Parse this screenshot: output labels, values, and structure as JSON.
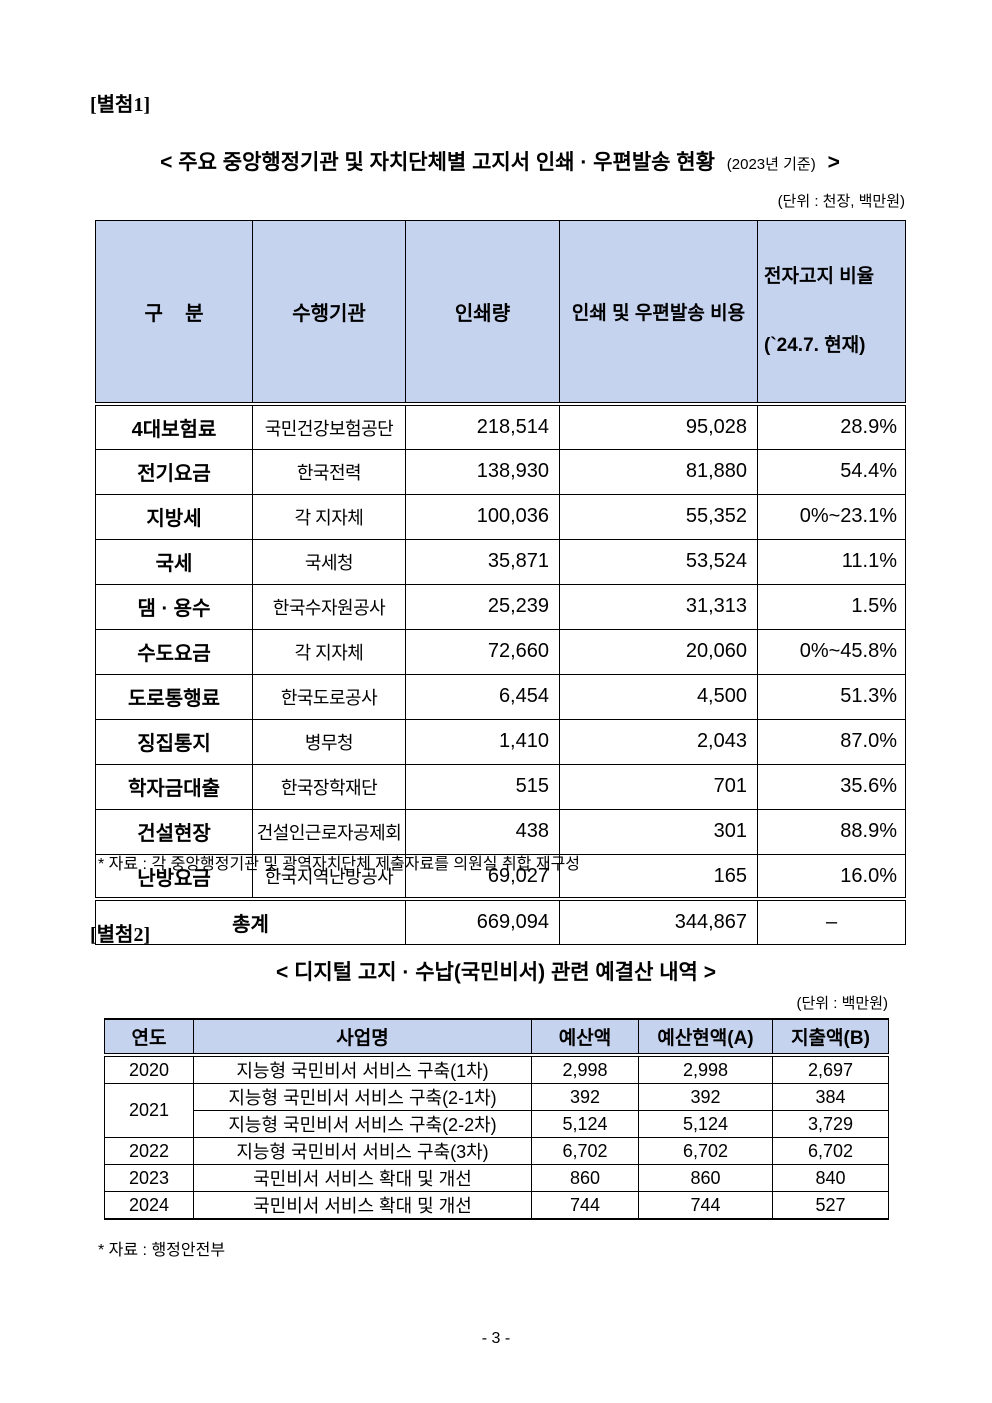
{
  "colors": {
    "header_bg": "#c6d3ef",
    "border": "#000000"
  },
  "page_number": "- 3 -",
  "attachment1": {
    "label": "[별첨1]",
    "title_main": "< 주요 중앙행정기관 및 자치단체별 고지서 인쇄 · 우편발송 현황",
    "title_note": "(2023년 기준)",
    "title_close": ">",
    "unit": "(단위 : 천장, 백만원)",
    "table": {
      "headers": {
        "category": "구    분",
        "agency": "수행기관",
        "print_volume": "인쇄량",
        "mail_cost": "인쇄 및 우편발송 비용",
        "rate_line1": "전자고지 비율",
        "rate_line2": "(`24.7. 현재)"
      },
      "rows": [
        {
          "category": "4대보험료",
          "agency": "국민건강보험공단",
          "print_volume": "218,514",
          "cost": "95,028",
          "rate": "28.9%"
        },
        {
          "category": "전기요금",
          "agency": "한국전력",
          "print_volume": "138,930",
          "cost": "81,880",
          "rate": "54.4%"
        },
        {
          "category": "지방세",
          "agency": "각 지자체",
          "print_volume": "100,036",
          "cost": "55,352",
          "rate": "0%~23.1%"
        },
        {
          "category": "국세",
          "agency": "국세청",
          "print_volume": "35,871",
          "cost": "53,524",
          "rate": "11.1%"
        },
        {
          "category": "댐 · 용수",
          "agency": "한국수자원공사",
          "print_volume": "25,239",
          "cost": "31,313",
          "rate": "1.5%"
        },
        {
          "category": "수도요금",
          "agency": "각 지자체",
          "print_volume": "72,660",
          "cost": "20,060",
          "rate": "0%~45.8%"
        },
        {
          "category": "도로통행료",
          "agency": "한국도로공사",
          "print_volume": "6,454",
          "cost": "4,500",
          "rate": "51.3%"
        },
        {
          "category": "징집통지",
          "agency": "병무청",
          "print_volume": "1,410",
          "cost": "2,043",
          "rate": "87.0%"
        },
        {
          "category": "학자금대출",
          "agency": "한국장학재단",
          "print_volume": "515",
          "cost": "701",
          "rate": "35.6%"
        },
        {
          "category": "건설현장",
          "agency": "건설인근로자공제회",
          "print_volume": "438",
          "cost": "301",
          "rate": "88.9%"
        },
        {
          "category": "난방요금",
          "agency": "한국지역난방공사",
          "print_volume": "69,027",
          "cost": "165",
          "rate": "16.0%"
        }
      ],
      "total": {
        "label": "총계",
        "print_volume": "669,094",
        "cost": "344,867",
        "rate": "–"
      }
    },
    "footnote": "* 자료 : 각 중앙행정기관 및 광역자치단체 제출자료를 의원실 취합 재구성"
  },
  "attachment2": {
    "label": "[별첨2]",
    "title": "< 디지털 고지 · 수납(국민비서) 관련 예결산 내역 >",
    "unit": "(단위 : 백만원)",
    "table": {
      "headers": [
        "연도",
        "사업명",
        "예산액",
        "예산현액(A)",
        "지출액(B)"
      ],
      "rows": [
        {
          "year": "2020",
          "rowspan": 1,
          "project": "지능형 국민비서 서비스 구축(1차)",
          "budget": "2,998",
          "current": "2,998",
          "spent": "2,697"
        },
        {
          "year": "2021",
          "rowspan": 2,
          "project": "지능형 국민비서 서비스 구축(2-1차)",
          "budget": "392",
          "current": "392",
          "spent": "384"
        },
        {
          "year": null,
          "rowspan": 0,
          "project": "지능형 국민비서 서비스 구축(2-2차)",
          "budget": "5,124",
          "current": "5,124",
          "spent": "3,729"
        },
        {
          "year": "2022",
          "rowspan": 1,
          "project": "지능형 국민비서 서비스 구축(3차)",
          "budget": "6,702",
          "current": "6,702",
          "spent": "6,702"
        },
        {
          "year": "2023",
          "rowspan": 1,
          "project": "국민비서 서비스 확대 및 개선",
          "budget": "860",
          "current": "860",
          "spent": "840"
        },
        {
          "year": "2024",
          "rowspan": 1,
          "project": "국민비서 서비스 확대 및 개선",
          "budget": "744",
          "current": "744",
          "spent": "527"
        }
      ]
    },
    "footnote": "* 자료 : 행정안전부"
  }
}
